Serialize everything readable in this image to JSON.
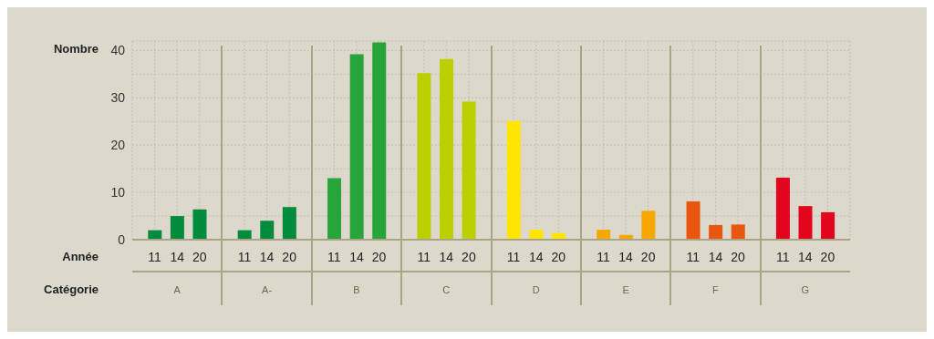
{
  "chart_data": {
    "type": "bar",
    "ylabel": "Nombre",
    "xlabel": "Année",
    "categories": [
      "11",
      "14",
      "20",
      "11",
      "14",
      "20",
      "11",
      "14",
      "20",
      "11",
      "14",
      "20",
      "11",
      "14",
      "20",
      "11",
      "14",
      "20",
      "11",
      "14",
      "20",
      "11",
      "14",
      "20"
    ],
    "values": [
      2,
      5,
      6.4,
      2,
      4,
      6.9,
      13,
      39.2,
      41.7,
      35.2,
      38.2,
      29.2,
      25.1,
      2.1,
      1.4,
      2.1,
      1,
      6.1,
      8.1,
      3.1,
      3.2,
      13.1,
      7.1,
      5.8
    ],
    "colors": [
      "#008c3c",
      "#008c3c",
      "#008c3c",
      "#008c3c",
      "#008c3c",
      "#008c3c",
      "#27a43a",
      "#27a43a",
      "#27a43a",
      "#bccf00",
      "#bccf00",
      "#bccf00",
      "#ffe500",
      "#ffe500",
      "#ffe500",
      "#f7a800",
      "#f7a800",
      "#f7a800",
      "#e8560f",
      "#e8560f",
      "#e8560f",
      "#e3051d",
      "#e3051d",
      "#e3051d"
    ],
    "ylim": [
      0,
      42
    ],
    "yticks": [
      0,
      {
        "value": 5,
        "label": null
      },
      10,
      {
        "value": 15,
        "label": null
      },
      20,
      {
        "value": 25,
        "label": null
      },
      30,
      {
        "value": 35,
        "label": null
      },
      40
    ],
    "grid": true,
    "annotations": [
      "Catégorie",
      "A",
      "A-",
      "B",
      "C",
      "D",
      "E",
      "F",
      "G"
    ]
  }
}
